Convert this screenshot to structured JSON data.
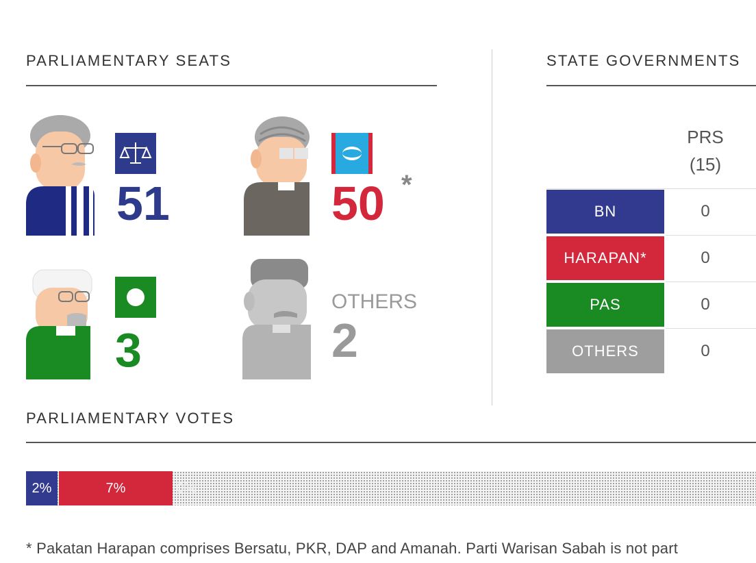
{
  "parliamentary_seats": {
    "title": "PARLIAMENTARY SEATS",
    "parties": [
      {
        "name": "BN",
        "seats": "51",
        "color": "#2e3a8c",
        "icon": "scales-icon"
      },
      {
        "name": "HARAPAN",
        "seats": "50",
        "asterisk": "*",
        "color": "#d3283c",
        "icon": "pkr-eye-icon"
      },
      {
        "name": "PAS",
        "seats": "3",
        "color": "#1a8a23",
        "icon": "moon-circle-icon"
      },
      {
        "name": "OTHERS",
        "label": "OTHERS",
        "seats": "2",
        "color": "#9a9a9a"
      }
    ]
  },
  "state_governments": {
    "title": "STATE GOVERNMENTS",
    "columns": [
      {
        "name": "PRS",
        "count": "(15)"
      }
    ],
    "rows": [
      {
        "party": "BN",
        "value": "0",
        "color": "#323a8f"
      },
      {
        "party": "HARAPAN*",
        "value": "0",
        "color": "#d3283c"
      },
      {
        "party": "PAS",
        "value": "0",
        "color": "#1a8a23"
      },
      {
        "party": "OTHERS",
        "value": "0",
        "color": "#9e9e9e"
      }
    ]
  },
  "parliamentary_votes": {
    "title": "PARLIAMENTARY VOTES",
    "segments": [
      {
        "party": "BN",
        "label": "2%",
        "share": 2,
        "color": "#323a8f"
      },
      {
        "party": "HARAPAN",
        "label": "7%",
        "share": 7,
        "color": "#d3283c"
      },
      {
        "party": "PAS",
        "label": "0%",
        "share": 0,
        "color": "#1a8a23"
      }
    ]
  },
  "footnote": "* Pakatan Harapan comprises Bersatu, PKR, DAP and Amanah. Parti Warisan Sabah is not part"
}
